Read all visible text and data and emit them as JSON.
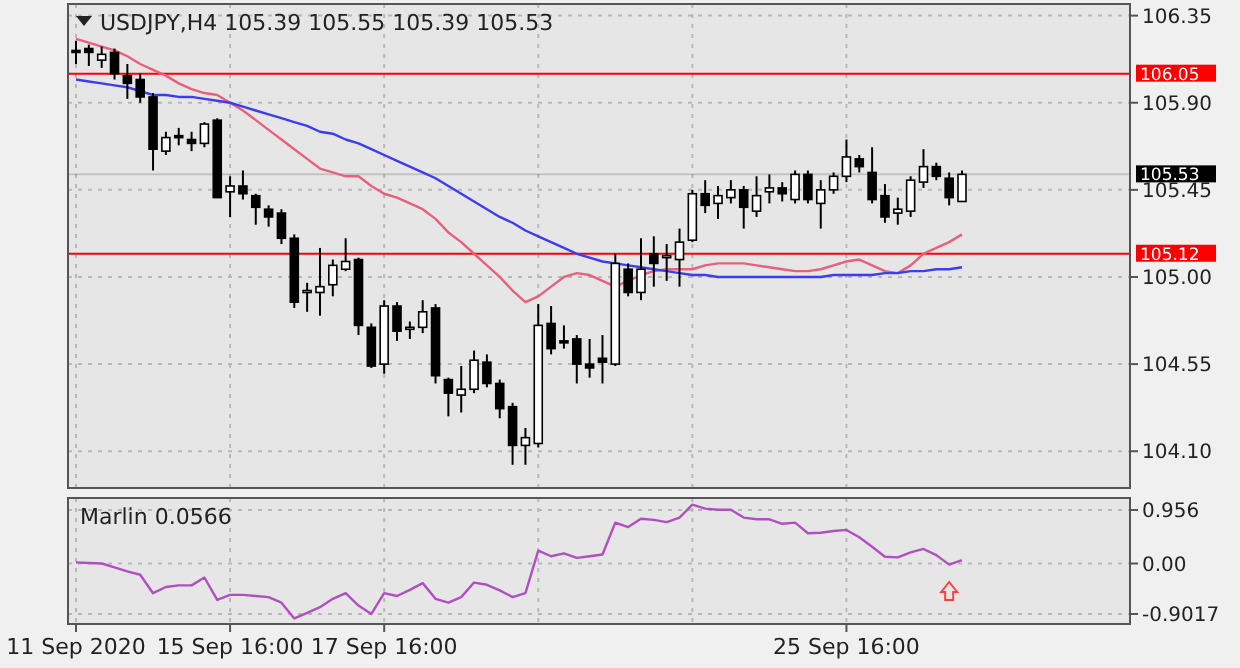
{
  "chart_data": [
    {
      "type": "candlestick",
      "title": "USDJPY,H4  105.39 105.55 105.39 105.53",
      "categories": [
        null,
        null,
        null,
        null,
        null,
        null,
        null,
        null,
        null,
        null,
        null,
        null,
        null,
        null,
        null,
        null,
        null,
        null,
        null,
        null,
        null,
        null,
        null,
        null,
        null,
        null,
        null,
        null,
        null,
        null,
        null,
        null,
        null,
        null,
        null,
        null,
        null,
        null,
        null,
        null,
        null,
        null,
        null,
        null,
        null,
        null,
        null,
        null,
        null,
        null,
        null,
        null,
        null,
        null,
        null,
        null,
        null,
        null,
        null,
        null,
        null,
        null,
        null,
        null,
        null,
        null,
        null,
        null,
        null,
        null
      ],
      "ohlc": [
        [
          106.17,
          106.22,
          106.1,
          106.16
        ],
        [
          106.18,
          106.2,
          106.09,
          106.16
        ],
        [
          106.12,
          106.19,
          106.08,
          106.15
        ],
        [
          106.16,
          106.18,
          106.02,
          106.05
        ],
        [
          106.04,
          106.1,
          105.92,
          106.0
        ],
        [
          106.02,
          106.05,
          105.9,
          105.93
        ],
        [
          105.93,
          105.95,
          105.55,
          105.66
        ],
        [
          105.65,
          105.75,
          105.63,
          105.72
        ],
        [
          105.73,
          105.77,
          105.68,
          105.72
        ],
        [
          105.71,
          105.75,
          105.65,
          105.69
        ],
        [
          105.69,
          105.8,
          105.67,
          105.79
        ],
        [
          105.81,
          105.82,
          105.41,
          105.41
        ],
        [
          105.44,
          105.52,
          105.31,
          105.47
        ],
        [
          105.47,
          105.55,
          105.4,
          105.43
        ],
        [
          105.42,
          105.43,
          105.27,
          105.36
        ],
        [
          105.35,
          105.37,
          105.26,
          105.31
        ],
        [
          105.33,
          105.35,
          105.17,
          105.2
        ],
        [
          105.2,
          105.22,
          104.84,
          104.87
        ],
        [
          104.92,
          104.97,
          104.82,
          104.93
        ],
        [
          104.92,
          105.15,
          104.8,
          104.95
        ],
        [
          104.96,
          105.09,
          104.9,
          105.06
        ],
        [
          105.04,
          105.2,
          105.03,
          105.08
        ],
        [
          105.09,
          105.1,
          104.7,
          104.75
        ],
        [
          104.74,
          104.76,
          104.53,
          104.54
        ],
        [
          104.55,
          104.88,
          104.5,
          104.85
        ],
        [
          104.85,
          104.87,
          104.67,
          104.72
        ],
        [
          104.73,
          104.77,
          104.68,
          104.74
        ],
        [
          104.74,
          104.88,
          104.71,
          104.82
        ],
        [
          104.84,
          104.86,
          104.45,
          104.49
        ],
        [
          104.47,
          104.48,
          104.28,
          104.4
        ],
        [
          104.39,
          104.54,
          104.3,
          104.42
        ],
        [
          104.42,
          104.62,
          104.4,
          104.57
        ],
        [
          104.56,
          104.6,
          104.43,
          104.45
        ],
        [
          104.45,
          104.47,
          104.27,
          104.32
        ],
        [
          104.33,
          104.35,
          104.03,
          104.13
        ],
        [
          104.13,
          104.22,
          104.03,
          104.17
        ],
        [
          104.14,
          104.86,
          104.12,
          104.75
        ],
        [
          104.76,
          104.85,
          104.6,
          104.63
        ],
        [
          104.67,
          104.75,
          104.63,
          104.66
        ],
        [
          104.68,
          104.7,
          104.45,
          104.55
        ],
        [
          104.55,
          104.68,
          104.48,
          104.53
        ],
        [
          104.58,
          104.7,
          104.45,
          104.56
        ],
        [
          104.55,
          105.12,
          104.54,
          105.07
        ],
        [
          105.04,
          105.07,
          104.9,
          104.92
        ],
        [
          104.92,
          105.2,
          104.88,
          105.04
        ],
        [
          105.12,
          105.21,
          104.95,
          105.07
        ],
        [
          105.1,
          105.17,
          104.98,
          105.11
        ],
        [
          105.09,
          105.25,
          104.95,
          105.18
        ],
        [
          105.19,
          105.45,
          105.18,
          105.43
        ],
        [
          105.43,
          105.5,
          105.33,
          105.37
        ],
        [
          105.38,
          105.47,
          105.3,
          105.42
        ],
        [
          105.41,
          105.5,
          105.38,
          105.45
        ],
        [
          105.45,
          105.47,
          105.25,
          105.36
        ],
        [
          105.34,
          105.52,
          105.31,
          105.42
        ],
        [
          105.44,
          105.53,
          105.38,
          105.46
        ],
        [
          105.46,
          105.49,
          105.39,
          105.43
        ],
        [
          105.4,
          105.55,
          105.38,
          105.53
        ],
        [
          105.53,
          105.55,
          105.38,
          105.4
        ],
        [
          105.38,
          105.5,
          105.25,
          105.45
        ],
        [
          105.45,
          105.54,
          105.43,
          105.52
        ],
        [
          105.52,
          105.71,
          105.49,
          105.62
        ],
        [
          105.61,
          105.63,
          105.54,
          105.57
        ],
        [
          105.54,
          105.67,
          105.38,
          105.4
        ],
        [
          105.42,
          105.48,
          105.28,
          105.31
        ],
        [
          105.33,
          105.41,
          105.27,
          105.35
        ],
        [
          105.34,
          105.52,
          105.31,
          105.5
        ],
        [
          105.49,
          105.66,
          105.46,
          105.57
        ],
        [
          105.57,
          105.59,
          105.5,
          105.52
        ],
        [
          105.51,
          105.54,
          105.37,
          105.41
        ],
        [
          105.39,
          105.55,
          105.39,
          105.53
        ]
      ],
      "series": [
        {
          "type": "line",
          "color": "#e8607a",
          "values": [
            106.23,
            106.21,
            106.19,
            106.17,
            106.14,
            106.1,
            106.07,
            106.04,
            106.0,
            105.97,
            105.95,
            105.94,
            105.9,
            105.86,
            105.81,
            105.76,
            105.71,
            105.66,
            105.61,
            105.56,
            105.54,
            105.52,
            105.52,
            105.47,
            105.43,
            105.41,
            105.38,
            105.35,
            105.3,
            105.23,
            105.18,
            105.12,
            105.06,
            105.0,
            104.93,
            104.87,
            104.9,
            104.95,
            105.0,
            105.02,
            105.01,
            104.98,
            104.95,
            104.98,
            105.01,
            105.03,
            105.04,
            105.04,
            105.04,
            105.06,
            105.07,
            105.07,
            105.07,
            105.06,
            105.05,
            105.04,
            105.03,
            105.03,
            105.04,
            105.06,
            105.08,
            105.09,
            105.06,
            105.03,
            105.02,
            105.06,
            105.12,
            105.15,
            105.18,
            105.22
          ]
        },
        {
          "type": "line",
          "color": "#3c3cf0",
          "values": [
            106.02,
            106.01,
            106.0,
            105.99,
            105.98,
            105.96,
            105.94,
            105.94,
            105.93,
            105.93,
            105.92,
            105.91,
            105.9,
            105.88,
            105.86,
            105.84,
            105.82,
            105.8,
            105.78,
            105.75,
            105.74,
            105.71,
            105.69,
            105.66,
            105.63,
            105.6,
            105.57,
            105.54,
            105.51,
            105.47,
            105.43,
            105.39,
            105.35,
            105.31,
            105.28,
            105.24,
            105.21,
            105.18,
            105.15,
            105.12,
            105.1,
            105.08,
            105.07,
            105.06,
            105.05,
            105.04,
            105.03,
            105.02,
            105.01,
            105.01,
            105.0,
            105.0,
            105.0,
            105.0,
            105.0,
            105.0,
            105.0,
            105.0,
            105.0,
            105.01,
            105.01,
            105.01,
            105.01,
            105.02,
            105.02,
            105.03,
            105.03,
            105.04,
            105.04,
            105.05
          ]
        }
      ],
      "ylim": [
        103.91,
        106.41
      ],
      "yticks": [
        106.35,
        {
          "value": 105.9,
          "label": "105.90"
        },
        105.45,
        {
          "value": 105,
          "label": "105.00"
        },
        104.55,
        {
          "value": 104.1,
          "label": "104.10"
        }
      ],
      "ref_lines": [
        {
          "axis": "y",
          "value": 106.05,
          "label": "106.05",
          "color": "#ff0000"
        },
        {
          "axis": "y",
          "value": 105.12,
          "label": "105.12",
          "color": "#ff0000"
        },
        {
          "axis": "y",
          "value": 105.53,
          "label": "105.53",
          "color": "#000000"
        }
      ],
      "grid": true,
      "tick_labels": "y"
    },
    {
      "type": "line",
      "title": "Marlin 0.0566",
      "categories": [
        "11 Sep 2020",
        null,
        null,
        null,
        null,
        null,
        null,
        null,
        null,
        null,
        null,
        null,
        "15 Sep 16:00",
        null,
        null,
        null,
        null,
        null,
        null,
        null,
        null,
        null,
        null,
        null,
        "17 Sep 16:00",
        null,
        null,
        null,
        null,
        null,
        null,
        null,
        null,
        null,
        null,
        null,
        null,
        null,
        null,
        null,
        null,
        null,
        null,
        null,
        null,
        null,
        null,
        null,
        null,
        null,
        null,
        null,
        null,
        null,
        null,
        null,
        null,
        null,
        null,
        null,
        "25 Sep 16:00",
        null,
        null,
        null,
        null,
        null,
        null,
        null,
        null,
        null
      ],
      "series": [
        {
          "color": "#b050c0",
          "values": [
            0.02,
            0.01,
            0.0,
            -0.07,
            -0.14,
            -0.2,
            -0.53,
            -0.42,
            -0.39,
            -0.39,
            -0.25,
            -0.65,
            -0.56,
            -0.56,
            -0.58,
            -0.6,
            -0.7,
            -0.98,
            -0.88,
            -0.78,
            -0.63,
            -0.53,
            -0.75,
            -0.9,
            -0.53,
            -0.58,
            -0.47,
            -0.35,
            -0.63,
            -0.7,
            -0.6,
            -0.34,
            -0.38,
            -0.48,
            -0.6,
            -0.53,
            0.23,
            0.13,
            0.18,
            0.1,
            0.13,
            0.16,
            0.73,
            0.65,
            0.8,
            0.78,
            0.74,
            0.82,
            1.05,
            0.98,
            0.96,
            0.96,
            0.82,
            0.79,
            0.79,
            0.71,
            0.73,
            0.54,
            0.55,
            0.58,
            0.6,
            0.47,
            0.3,
            0.12,
            0.11,
            0.2,
            0.26,
            0.15,
            -0.02,
            0.06
          ]
        }
      ],
      "ylim": [
        -1.08,
        1.17
      ],
      "yticks": [
        {
          "value": 0.956,
          "label": "0.956"
        },
        {
          "value": 0,
          "label": "0.00"
        },
        {
          "value": -0.9017,
          "label": "-0.9017"
        }
      ],
      "grid": true
    }
  ]
}
